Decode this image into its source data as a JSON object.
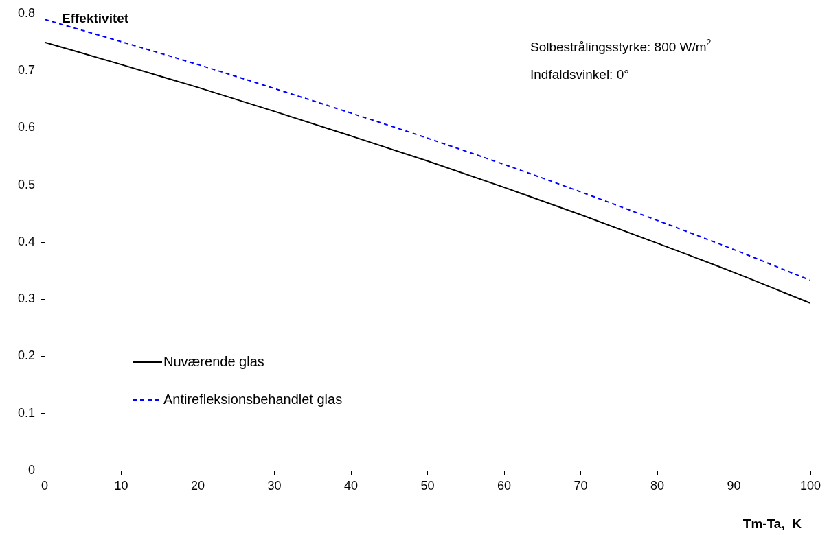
{
  "chart_data": {
    "type": "line",
    "xlabel": "Tm-Ta,  K",
    "ylabel": "Effektivitet",
    "x": [
      0,
      10,
      20,
      30,
      40,
      50,
      60,
      70,
      80,
      90,
      100
    ],
    "series": [
      {
        "name": "Nuværende glas",
        "color": "#000000",
        "line_style": "solid",
        "values": [
          0.75,
          0.711,
          0.671,
          0.629,
          0.586,
          0.542,
          0.496,
          0.448,
          0.398,
          0.347,
          0.293
        ]
      },
      {
        "name": "Antirefleksionsbehandlet glas",
        "color": "#0000ff",
        "line_style": "dashed",
        "values": [
          0.79,
          0.751,
          0.711,
          0.669,
          0.626,
          0.582,
          0.536,
          0.488,
          0.438,
          0.387,
          0.333
        ]
      }
    ],
    "xlim": [
      0,
      100
    ],
    "xticks": [
      0,
      10,
      20,
      30,
      40,
      50,
      60,
      70,
      80,
      90,
      100
    ],
    "ylim": [
      0,
      0.8
    ],
    "yticks": [
      0,
      0.1,
      0.2,
      0.3,
      0.4,
      0.5,
      0.6,
      0.7,
      0.8
    ],
    "annotations": [
      "Solbestrålingsstyrke: 800 W/m$^{2}$",
      "Indfaldsvinkel: 0°"
    ],
    "grid": false,
    "legend": "bottom left",
    "marker": "none"
  }
}
